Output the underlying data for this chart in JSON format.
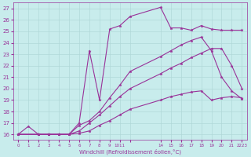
{
  "xlabel": "Windchill (Refroidissement éolien,°C)",
  "bg_color": "#c8ecec",
  "grid_color": "#b0d8d8",
  "line_color": "#993399",
  "ylim": [
    15.5,
    27.5
  ],
  "yticks": [
    16,
    17,
    18,
    19,
    20,
    21,
    22,
    23,
    24,
    25,
    26,
    27
  ],
  "xtick_pos": [
    0,
    1,
    2,
    3,
    4,
    5,
    6,
    7,
    8,
    9,
    10,
    11,
    14,
    15,
    16,
    17,
    18,
    19,
    20,
    21,
    22
  ],
  "xtick_lab": [
    "0",
    "1",
    "2",
    "3",
    "4",
    "5",
    "6",
    "7",
    "8",
    "9",
    "1011",
    "",
    "14",
    "15",
    "16",
    "17",
    "18",
    "19",
    "20",
    "21",
    "2223"
  ],
  "line1_x": [
    0,
    1,
    2,
    3,
    4,
    5,
    6,
    7,
    8,
    9,
    10,
    11,
    14,
    15,
    16,
    17,
    18,
    19,
    20,
    21,
    22
  ],
  "line1_y": [
    16,
    16.7,
    16,
    16,
    16,
    16,
    17,
    23.3,
    19.0,
    25.2,
    25.5,
    26.3,
    27.1,
    25.3,
    25.3,
    25.1,
    25.5,
    25.2,
    25.1,
    25.1,
    25.1
  ],
  "line2_x": [
    0,
    2,
    3,
    4,
    5,
    6,
    7,
    8,
    9,
    10,
    11,
    14,
    15,
    16,
    17,
    18,
    19,
    20,
    21,
    22
  ],
  "line2_y": [
    16,
    16,
    16,
    16,
    16,
    16.8,
    17.2,
    18.0,
    19.2,
    20.3,
    21.5,
    22.8,
    23.3,
    23.8,
    24.2,
    24.5,
    23.3,
    21.0,
    19.8,
    19.1
  ],
  "line3_x": [
    0,
    2,
    3,
    4,
    5,
    6,
    7,
    8,
    9,
    10,
    11,
    14,
    15,
    16,
    17,
    18,
    19,
    20,
    21,
    22
  ],
  "line3_y": [
    16,
    16,
    16,
    16,
    16,
    16.3,
    17.0,
    17.7,
    18.5,
    19.3,
    20.0,
    21.3,
    21.8,
    22.2,
    22.7,
    23.1,
    23.5,
    23.5,
    22.0,
    20.0
  ],
  "line4_x": [
    0,
    2,
    3,
    4,
    5,
    6,
    7,
    8,
    9,
    10,
    11,
    14,
    15,
    16,
    17,
    18,
    19,
    20,
    21,
    22
  ],
  "line4_y": [
    16,
    16,
    16,
    16,
    16,
    16.1,
    16.3,
    16.8,
    17.2,
    17.7,
    18.2,
    19.0,
    19.3,
    19.5,
    19.7,
    19.8,
    19.0,
    19.2,
    19.3,
    19.2
  ]
}
